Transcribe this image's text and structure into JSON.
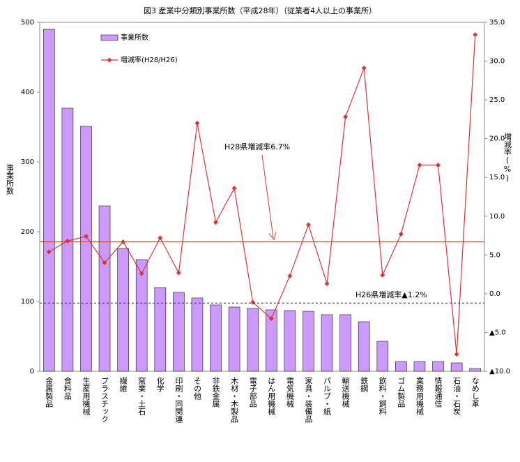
{
  "chart_data": {
    "type": "bar",
    "title": "図3 産業中分類別事業所数（平成28年）（従業者4人以上の事業所）",
    "ylabel": "事業所数",
    "y2label": "増減率(%)",
    "categories": [
      "金属製品",
      "食料品",
      "生産用機械",
      "プラスチック",
      "繊維",
      "窯業・土石",
      "化学",
      "印刷・同関連",
      "その他",
      "非鉄金属",
      "木材・木製品",
      "電子部品",
      "はん用機械",
      "電気機械",
      "家具・装備品",
      "パルプ・紙",
      "輸送機械",
      "鉄鋼",
      "飲料・飼料",
      "ゴム製品",
      "業務用機械",
      "情報通信",
      "石油・石炭",
      "なめし革"
    ],
    "series": [
      {
        "name": "事業所数",
        "type": "bar",
        "color": "#cc99ff",
        "values": [
          490,
          377,
          351,
          237,
          176,
          160,
          120,
          113,
          105,
          95,
          92,
          90,
          88,
          87,
          86,
          81,
          81,
          71,
          43,
          14,
          14,
          14,
          12,
          4
        ]
      },
      {
        "name": "増減率(H28/H26)",
        "type": "line",
        "axis": "y2",
        "color": "#dd3333",
        "values": [
          5.4,
          6.8,
          7.4,
          4.0,
          6.7,
          2.6,
          7.2,
          2.7,
          22.0,
          9.2,
          13.6,
          -1.1,
          -3.2,
          2.3,
          8.9,
          1.3,
          22.8,
          29.1,
          2.4,
          7.7,
          16.6,
          16.6,
          -7.8,
          33.4
        ]
      }
    ],
    "ylim": [
      0,
      500
    ],
    "yticks": [
      0,
      100,
      200,
      300,
      400,
      500
    ],
    "y2lim": [
      -10,
      35
    ],
    "y2ticks": [
      {
        "value": -10,
        "label": "▲10.0"
      },
      {
        "value": -5,
        "label": "▲5.0"
      },
      {
        "value": 0,
        "label": "0.0"
      },
      {
        "value": 5,
        "label": "5.0"
      },
      {
        "value": 10,
        "label": "10.0"
      },
      {
        "value": 15,
        "label": "15.0"
      },
      {
        "value": 20,
        "label": "20.0"
      },
      {
        "value": 25,
        "label": "25.0"
      },
      {
        "value": 30,
        "label": "30.0"
      },
      {
        "value": 35,
        "label": "35.0"
      }
    ],
    "reference_lines": [
      {
        "value": 6.7,
        "label": "H28県増減率6.7%",
        "color": "#dd3333",
        "dashed": false
      },
      {
        "value": -1.2,
        "label": "H26県増減率▲1.2%",
        "color": "#1a237e",
        "dashed": true
      }
    ],
    "grid": false
  }
}
